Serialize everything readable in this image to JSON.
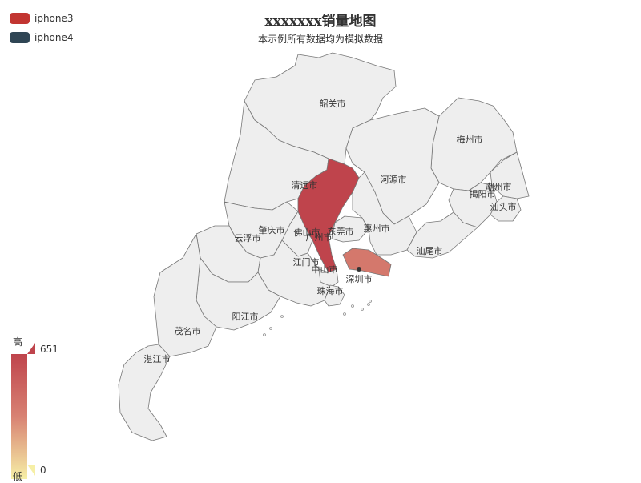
{
  "title": "xxxxxxx销量地图",
  "subtitle": "本示例所有数据均为模拟数据",
  "legend": [
    {
      "name": "iphone3",
      "color": "#c23531"
    },
    {
      "name": "iphone4",
      "color": "#2f4554"
    }
  ],
  "visual_map": {
    "high_label": "高",
    "low_label": "低",
    "max": "651",
    "min": "0",
    "colors": [
      "#bf444c",
      "#d88273",
      "#f6efa6"
    ]
  },
  "chart_data": {
    "type": "map",
    "region": "广东",
    "value_range": [
      0,
      651
    ],
    "regions": [
      {
        "name": "韶关市",
        "value": 0
      },
      {
        "name": "梅州市",
        "value": 0
      },
      {
        "name": "潮州市",
        "value": 0
      },
      {
        "name": "揭阳市",
        "value": 0
      },
      {
        "name": "汕头市",
        "value": 0
      },
      {
        "name": "河源市",
        "value": 0
      },
      {
        "name": "清远市",
        "value": 0
      },
      {
        "name": "广州市",
        "value": 651
      },
      {
        "name": "东莞市",
        "value": 0
      },
      {
        "name": "惠州市",
        "value": 0
      },
      {
        "name": "汕尾市",
        "value": 0
      },
      {
        "name": "肇庆市",
        "value": 0
      },
      {
        "name": "佛山市",
        "value": 0
      },
      {
        "name": "云浮市",
        "value": 0
      },
      {
        "name": "江门市",
        "value": 0
      },
      {
        "name": "中山市",
        "value": 0
      },
      {
        "name": "深圳市",
        "value": 380
      },
      {
        "name": "珠海市",
        "value": 0
      },
      {
        "name": "阳江市",
        "value": 0
      },
      {
        "name": "茂名市",
        "value": 0
      },
      {
        "name": "湛江市",
        "value": 0
      }
    ]
  }
}
